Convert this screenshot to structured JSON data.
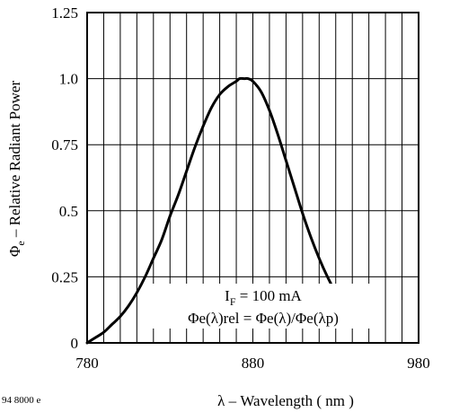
{
  "chart_data": {
    "type": "line",
    "xlabel": "λ – Wavelength ( nm )",
    "ylabel_symbol": "Φ",
    "ylabel_sub": "e",
    "ylabel_rest": " – Relative Radiant Power",
    "xlim": [
      780,
      980
    ],
    "ylim": [
      0,
      1.25
    ],
    "x_ticks": [
      780,
      880,
      980
    ],
    "x_tick_labels": [
      "780",
      "880",
      "980"
    ],
    "y_ticks": [
      0,
      0.25,
      0.5,
      0.75,
      1.0,
      1.25
    ],
    "y_tick_labels": [
      "0",
      "0.25",
      "0.5",
      "0.75",
      "1.0",
      "1.25"
    ],
    "grid": true,
    "annotation_line1": {
      "main": "I",
      "sub": "F",
      "rest": " = 100 mA"
    },
    "annotation_line2": "Φe(λ)rel = Φe(λ)/Φe(λp)",
    "figure_code": "94 8000 e",
    "series": [
      {
        "x": [
          780,
          785,
          790,
          795,
          800,
          805,
          810,
          815,
          820,
          825,
          830,
          835,
          840,
          845,
          850,
          855,
          860,
          865,
          870,
          872,
          875,
          877,
          880,
          885,
          890,
          895,
          900,
          905,
          910,
          915,
          920,
          925,
          930,
          935,
          940,
          945,
          950
        ],
        "y": [
          0.0,
          0.02,
          0.04,
          0.07,
          0.1,
          0.14,
          0.19,
          0.25,
          0.32,
          0.39,
          0.48,
          0.56,
          0.65,
          0.74,
          0.82,
          0.89,
          0.94,
          0.97,
          0.99,
          1.0,
          1.0,
          1.0,
          0.99,
          0.95,
          0.88,
          0.79,
          0.69,
          0.59,
          0.49,
          0.4,
          0.32,
          0.25,
          0.19,
          0.14,
          0.11,
          0.08,
          0.06
        ]
      }
    ]
  }
}
